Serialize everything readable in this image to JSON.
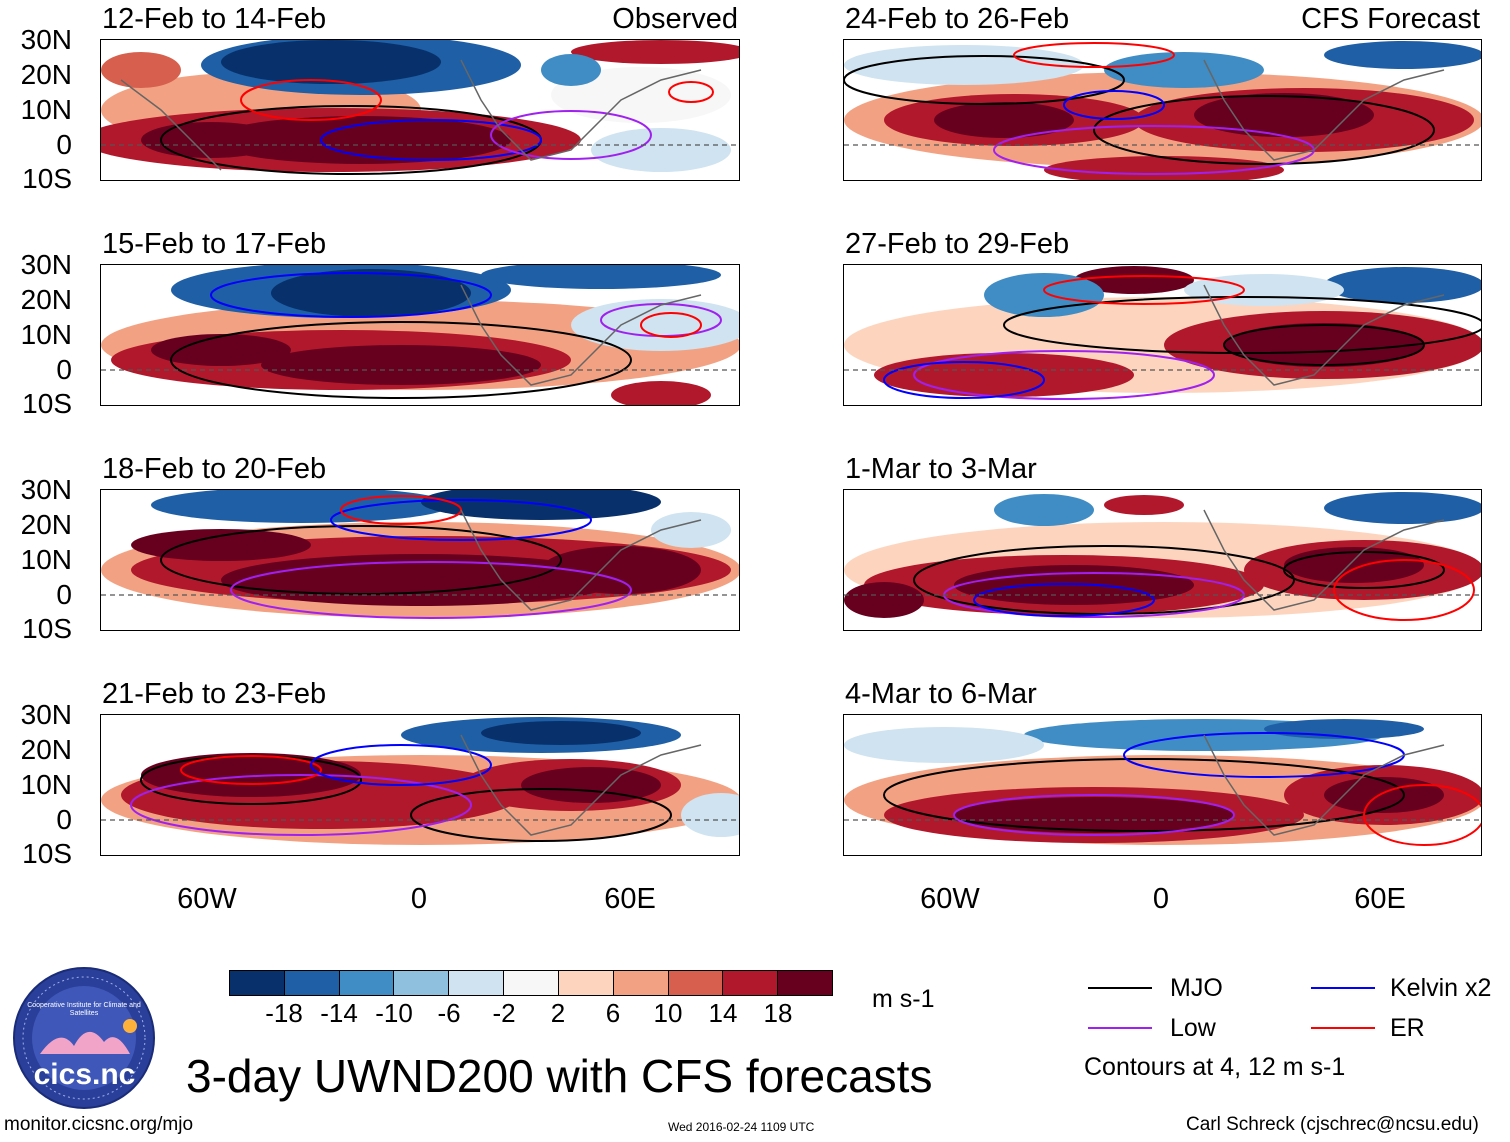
{
  "figure": {
    "title": "3-day UWND200 with CFS forecasts",
    "observed_label": "Observed",
    "forecast_label": "CFS Forecast",
    "units": "m s-1",
    "contour_note": "Contours at 4, 12 m s-1",
    "website": "monitor.cicsnc.org/mjo",
    "timestamp": "Wed 2016-02-24 1109 UTC",
    "credit": "Carl Schreck (cjschrec@ncsu.edu)",
    "logo": {
      "text": "cics.nc",
      "ring_text": "Cooperative Institute for Climate and Satellites"
    }
  },
  "panels_left": [
    {
      "title": "12-Feb to 14-Feb"
    },
    {
      "title": "15-Feb to 17-Feb"
    },
    {
      "title": "18-Feb to 20-Feb"
    },
    {
      "title": "21-Feb to 23-Feb"
    }
  ],
  "panels_right": [
    {
      "title": "24-Feb to 26-Feb"
    },
    {
      "title": "27-Feb to 29-Feb"
    },
    {
      "title": "1-Mar to 3-Mar"
    },
    {
      "title": "4-Mar to 6-Mar"
    }
  ],
  "axes": {
    "lat_labels": [
      "30N",
      "20N",
      "10N",
      "0",
      "10S"
    ],
    "lon_labels": [
      "60W",
      "0",
      "60E"
    ]
  },
  "colorbar": {
    "tick_labels": [
      "-18",
      "-14",
      "-10",
      "-6",
      "-2",
      "2",
      "6",
      "10",
      "14",
      "18"
    ],
    "colors": [
      "#08306b",
      "#1f5fa6",
      "#3f8dc4",
      "#8fc0de",
      "#cfe3f0",
      "#f7f7f7",
      "#fdd5bf",
      "#f2a283",
      "#d6604d",
      "#b2182b",
      "#67001f"
    ]
  },
  "legend": {
    "items": [
      {
        "label": "MJO",
        "color": "#000000"
      },
      {
        "label": "Kelvin x2",
        "color": "#0000ff"
      },
      {
        "label": "Low",
        "color": "#a020f0"
      },
      {
        "label": "ER",
        "color": "#ff0000"
      }
    ]
  }
}
